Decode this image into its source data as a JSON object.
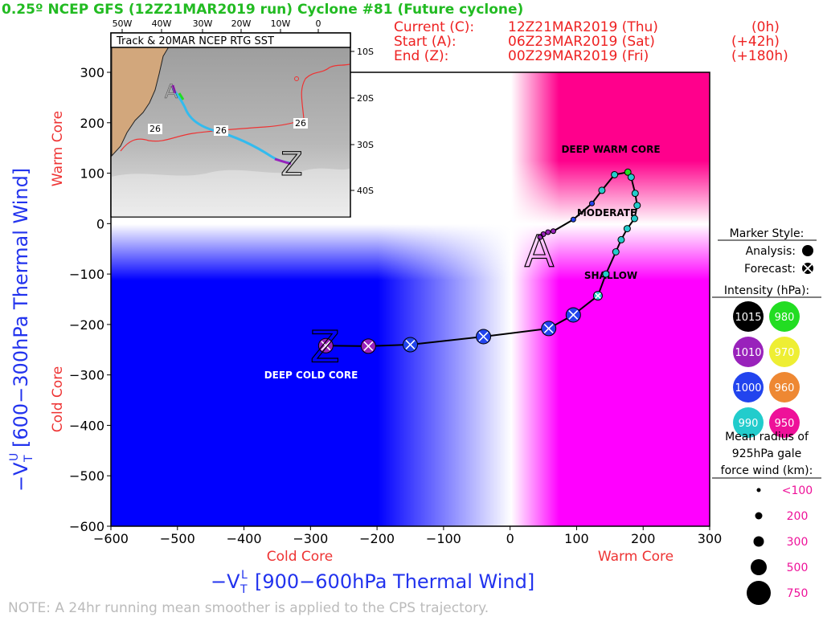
{
  "header": {
    "title": "0.25º NCEP GFS (12Z21MAR2019 run) Cyclone #81 (Future cyclone)",
    "current_label": "Current (C):",
    "current_date": "12Z21MAR2019 (Thu)",
    "current_offset": "(0h)",
    "start_label": "Start (A):",
    "start_date": "06Z23MAR2019 (Sat)",
    "start_offset": "(+42h)",
    "end_label": "End (Z):",
    "end_date": "00Z29MAR2019 (Fri)",
    "end_offset": "(+180h)"
  },
  "note": "NOTE:  A 24hr running mean smoother is applied to the CPS trajectory.",
  "region_labels": {
    "deep_warm_core": "DEEP WARM CORE",
    "moderate": "MODERATE",
    "shallow": "SHALLOW",
    "deep_cold_core": "DEEP COLD CORE"
  },
  "axis_side_labels": {
    "x_cold": "Cold Core",
    "x_warm": "Warm Core",
    "y_warm": "Warm Core",
    "y_cold": "Cold Core"
  },
  "inset": {
    "title": "Track & 20MAR NCEP RTG SST",
    "lon_ticks": [
      "50W",
      "40W",
      "30W",
      "20W",
      "10W",
      "0"
    ],
    "lat_ticks": [
      "10S",
      "20S",
      "30S",
      "40S"
    ],
    "sst_labels": [
      "26",
      "26",
      "26"
    ],
    "start_marker": "A",
    "end_marker": "Z"
  },
  "legend": {
    "marker_style_title": "Marker Style:",
    "analysis_label": "Analysis:",
    "forecast_label": "Forecast:",
    "intensity_title": "Intensity (hPa):",
    "intensity_items": [
      {
        "label": "1015",
        "color": "#000000"
      },
      {
        "label": "980",
        "color": "#22dd22"
      },
      {
        "label": "1010",
        "color": "#9922bb"
      },
      {
        "label": "970",
        "color": "#eeee33"
      },
      {
        "label": "1000",
        "color": "#2244ee"
      },
      {
        "label": "960",
        "color": "#ee8833"
      },
      {
        "label": "990",
        "color": "#22cccc"
      },
      {
        "label": "950",
        "color": "#ee1199"
      }
    ],
    "radius_title_1": "Mean radius of",
    "radius_title_2": "925hPa gale",
    "radius_title_3": "force wind (km):",
    "radius_items": [
      "<100",
      "200",
      "300",
      "500",
      "750"
    ]
  },
  "chart_data": {
    "type": "scatter",
    "title": "0.25º NCEP GFS (12Z21MAR2019 run) Cyclone #81 (Future cyclone)",
    "xlabel": "-V_T^L [900-600hPa Thermal Wind]",
    "ylabel": "-V_T^U [600-300hPa Thermal Wind]",
    "xlim": [
      -600,
      300
    ],
    "ylim": [
      -600,
      300
    ],
    "xticks": [
      "−600",
      "−500",
      "−400",
      "−300",
      "−200",
      "−100",
      "0",
      "100",
      "200",
      "300"
    ],
    "yticks": [
      "300",
      "200",
      "100",
      "0",
      "−100",
      "−200",
      "−300",
      "−400",
      "−500",
      "−600"
    ],
    "start_marker": "A",
    "end_marker": "Z",
    "track": [
      {
        "x": 45,
        "y": -27,
        "p": 1010,
        "r": 1
      },
      {
        "x": 50,
        "y": -21,
        "p": 1010,
        "r": 1
      },
      {
        "x": 57,
        "y": -17,
        "p": 1010,
        "r": 1
      },
      {
        "x": 65,
        "y": -15,
        "p": 1010,
        "r": 1
      },
      {
        "x": 95,
        "y": 8,
        "p": 1000,
        "r": 1
      },
      {
        "x": 123,
        "y": 40,
        "p": 1000,
        "r": 1
      },
      {
        "x": 138,
        "y": 66,
        "p": 990,
        "r": 2
      },
      {
        "x": 157,
        "y": 97,
        "p": 990,
        "r": 2
      },
      {
        "x": 177,
        "y": 102,
        "p": 980,
        "r": 2
      },
      {
        "x": 182,
        "y": 92,
        "p": 990,
        "r": 2
      },
      {
        "x": 188,
        "y": 60,
        "p": 990,
        "r": 2
      },
      {
        "x": 191,
        "y": 36,
        "p": 990,
        "r": 2
      },
      {
        "x": 187,
        "y": 10,
        "p": 990,
        "r": 2
      },
      {
        "x": 176,
        "y": -10,
        "p": 990,
        "r": 2
      },
      {
        "x": 167,
        "y": -32,
        "p": 990,
        "r": 2
      },
      {
        "x": 159,
        "y": -56,
        "p": 990,
        "r": 2
      },
      {
        "x": 144,
        "y": -100,
        "p": 990,
        "r": 2
      },
      {
        "x": 132,
        "y": -143,
        "p": 990,
        "r": 3
      },
      {
        "x": 95,
        "y": -181,
        "p": 1000,
        "r": 4
      },
      {
        "x": 58,
        "y": -208,
        "p": 1000,
        "r": 4
      },
      {
        "x": -40,
        "y": -224,
        "p": 1000,
        "r": 4
      },
      {
        "x": -150,
        "y": -240,
        "p": 1000,
        "r": 4
      },
      {
        "x": -213,
        "y": -243,
        "p": 1010,
        "r": 4
      },
      {
        "x": -277,
        "y": -242,
        "p": 1010,
        "r": 4
      }
    ]
  }
}
